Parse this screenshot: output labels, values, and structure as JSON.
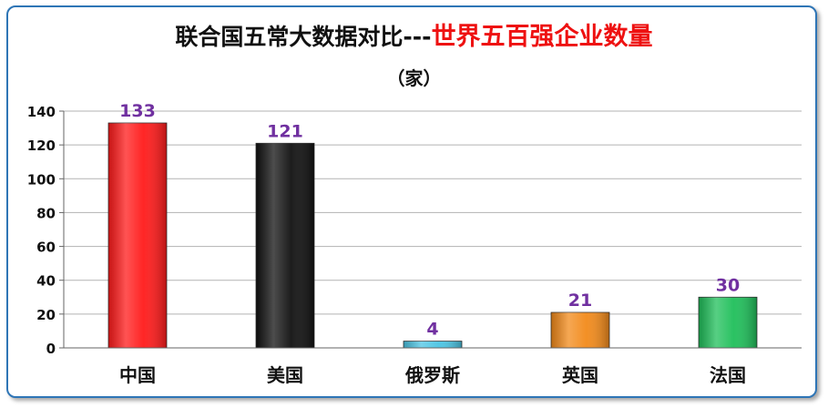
{
  "title": {
    "part1": "联合国五常大数据对比---",
    "part2": "世界五百强企业数量",
    "unit": "（家）"
  },
  "colors": {
    "frame": "#2e75b6",
    "title_highlight": "#ee1111",
    "data_label": "#7030a0"
  },
  "chart_data": {
    "type": "bar",
    "title": "联合国五常大数据对比---世界五百强企业数量",
    "subtitle": "（家）",
    "categories": [
      "中国",
      "美国",
      "俄罗斯",
      "英国",
      "法国"
    ],
    "values": [
      133,
      121,
      4,
      21,
      30
    ],
    "bar_colors": [
      "#ff1a1a",
      "#111111",
      "#4bc4e3",
      "#f28a1a",
      "#1fbf5a"
    ],
    "ylim": [
      0,
      140
    ],
    "yticks": [
      0,
      20,
      40,
      60,
      80,
      100,
      120,
      140
    ],
    "grid": true,
    "data_labels": true
  }
}
